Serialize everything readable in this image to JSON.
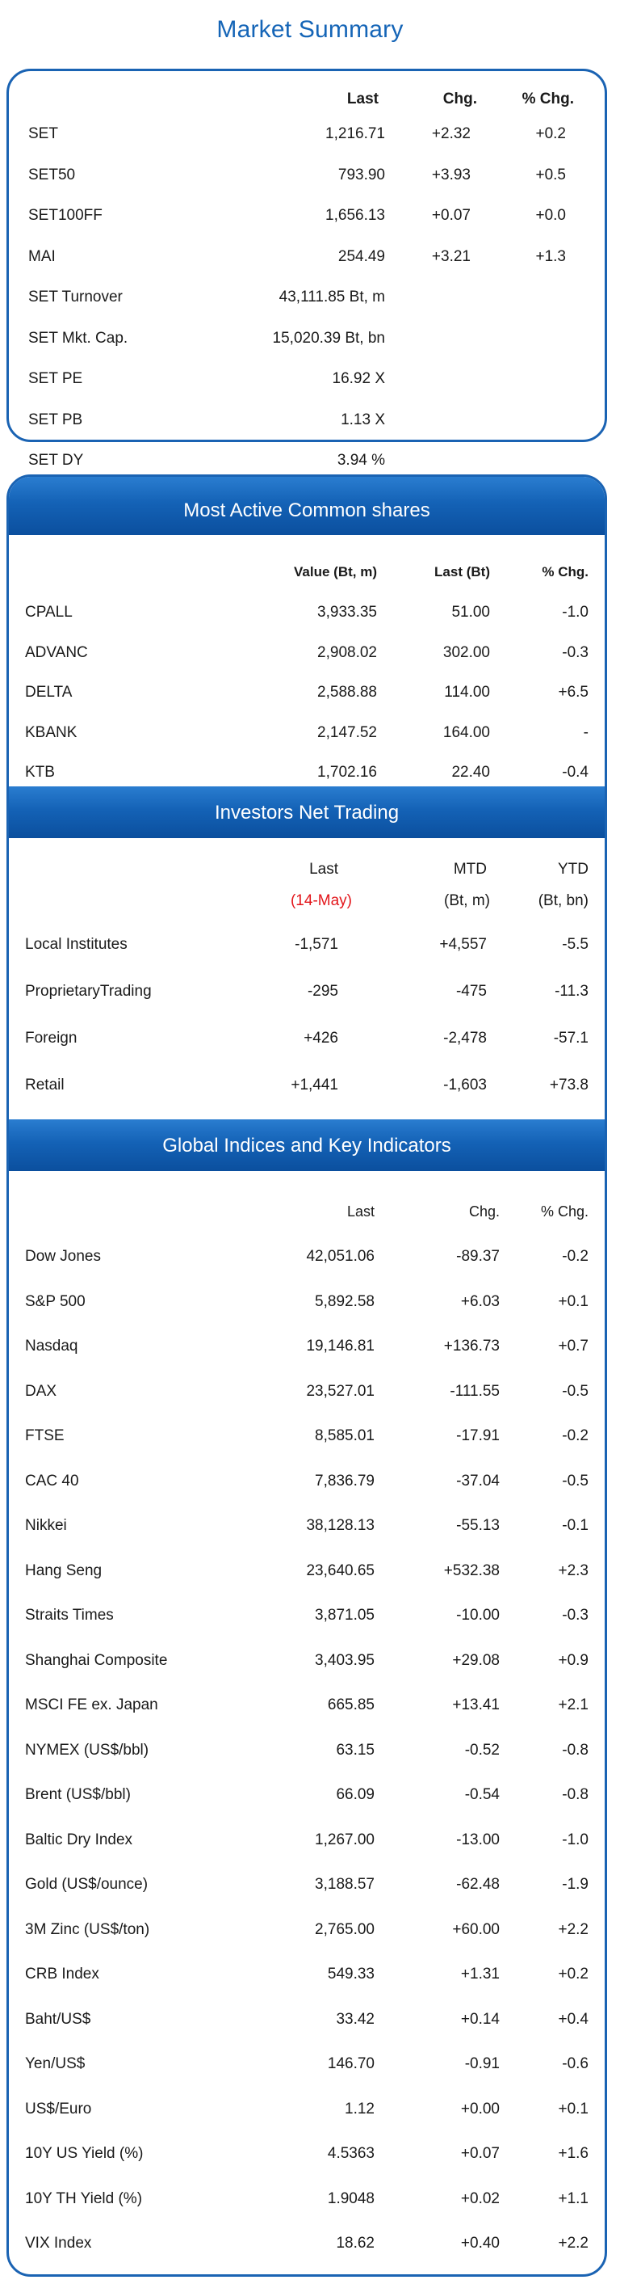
{
  "page_title": "Market Summary",
  "market_summary": {
    "headers": {
      "last": "Last",
      "chg": "Chg.",
      "pct": "% Chg."
    },
    "rows": [
      {
        "name": "SET",
        "last": "1,216.71",
        "chg": "+2.32",
        "pct": "+0.2"
      },
      {
        "name": "SET50",
        "last": "793.90",
        "chg": "+3.93",
        "pct": "+0.5"
      },
      {
        "name": "SET100FF",
        "last": "1,656.13",
        "chg": "+0.07",
        "pct": "+0.0"
      },
      {
        "name": "MAI",
        "last": "254.49",
        "chg": "+3.21",
        "pct": "+1.3"
      },
      {
        "name": "SET  Turnover",
        "last": "43,111.85 Bt, m",
        "chg": "",
        "pct": ""
      },
      {
        "name": "SET  Mkt. Cap.",
        "last": "15,020.39 Bt, bn",
        "chg": "",
        "pct": ""
      },
      {
        "name": "SET  PE",
        "last": "16.92 X",
        "chg": "",
        "pct": ""
      },
      {
        "name": "SET  PB",
        "last": "1.13 X",
        "chg": "",
        "pct": ""
      },
      {
        "name": "SET  DY",
        "last": "3.94 %",
        "chg": "",
        "pct": ""
      }
    ]
  },
  "most_active": {
    "title": "Most Active Common shares",
    "headers": {
      "value": "Value (Bt, m)",
      "last": "Last (Bt)",
      "pct": "% Chg."
    },
    "rows": [
      {
        "name": "CPALL",
        "value": "3,933.35",
        "last": "51.00",
        "pct": "-1.0"
      },
      {
        "name": "ADVANC",
        "value": "2,908.02",
        "last": "302.00",
        "pct": "-0.3"
      },
      {
        "name": "DELTA",
        "value": "2,588.88",
        "last": "114.00",
        "pct": "+6.5"
      },
      {
        "name": "KBANK",
        "value": "2,147.52",
        "last": "164.00",
        "pct": "-"
      },
      {
        "name": "KTB",
        "value": "1,702.16",
        "last": "22.40",
        "pct": "-0.4"
      }
    ]
  },
  "investors": {
    "title": "Investors Net Trading",
    "headers": {
      "last": "Last",
      "mtd": "MTD",
      "ytd": "YTD"
    },
    "subheaders": {
      "last": "(14-May)",
      "mtd": "(Bt, m)",
      "ytd": "(Bt, bn)"
    },
    "rows": [
      {
        "name": "Local Institutes",
        "last": "-1,571",
        "mtd": "+4,557",
        "ytd": "-5.5"
      },
      {
        "name": "ProprietaryTrading",
        "last": "-295",
        "mtd": "-475",
        "ytd": "-11.3"
      },
      {
        "name": "Foreign",
        "last": "+426",
        "mtd": "-2,478",
        "ytd": "-57.1"
      },
      {
        "name": "Retail",
        "last": "+1,441",
        "mtd": "-1,603",
        "ytd": "+73.8"
      }
    ]
  },
  "global": {
    "title": "Global Indices and Key Indicators",
    "headers": {
      "last": "Last",
      "chg": "Chg.",
      "pct": "% Chg."
    },
    "rows": [
      {
        "name": "Dow Jones",
        "last": "42,051.06",
        "chg": "-89.37",
        "pct": "-0.2"
      },
      {
        "name": "S&P 500",
        "last": "5,892.58",
        "chg": "+6.03",
        "pct": "+0.1"
      },
      {
        "name": "Nasdaq",
        "last": "19,146.81",
        "chg": "+136.73",
        "pct": "+0.7"
      },
      {
        "name": "DAX",
        "last": "23,527.01",
        "chg": "-111.55",
        "pct": "-0.5"
      },
      {
        "name": "FTSE",
        "last": "8,585.01",
        "chg": "-17.91",
        "pct": "-0.2"
      },
      {
        "name": "CAC 40",
        "last": "7,836.79",
        "chg": "-37.04",
        "pct": "-0.5"
      },
      {
        "name": "Nikkei",
        "last": "38,128.13",
        "chg": "-55.13",
        "pct": "-0.1"
      },
      {
        "name": "Hang Seng",
        "last": "23,640.65",
        "chg": "+532.38",
        "pct": "+2.3"
      },
      {
        "name": "Straits Times",
        "last": "3,871.05",
        "chg": "-10.00",
        "pct": "-0.3"
      },
      {
        "name": "Shanghai Composite",
        "last": "3,403.95",
        "chg": "+29.08",
        "pct": "+0.9"
      },
      {
        "name": "MSCI FE ex. Japan",
        "last": "665.85",
        "chg": "+13.41",
        "pct": "+2.1"
      },
      {
        "name": "NYMEX (US$/bbl)",
        "last": "63.15",
        "chg": "-0.52",
        "pct": "-0.8"
      },
      {
        "name": "Brent (US$/bbl)",
        "last": "66.09",
        "chg": "-0.54",
        "pct": "-0.8"
      },
      {
        "name": "Baltic Dry Index",
        "last": "1,267.00",
        "chg": "-13.00",
        "pct": "-1.0"
      },
      {
        "name": "Gold (US$/ounce)",
        "last": "3,188.57",
        "chg": "-62.48",
        "pct": "-1.9"
      },
      {
        "name": "3M Zinc (US$/ton)",
        "last": "2,765.00",
        "chg": "+60.00",
        "pct": "+2.2"
      },
      {
        "name": "CRB Index",
        "last": "549.33",
        "chg": "+1.31",
        "pct": "+0.2"
      },
      {
        "name": "Baht/US$",
        "last": "33.42",
        "chg": "+0.14",
        "pct": "+0.4"
      },
      {
        "name": "Yen/US$",
        "last": "146.70",
        "chg": "-0.91",
        "pct": "-0.6"
      },
      {
        "name": "US$/Euro",
        "last": "1.12",
        "chg": "+0.00",
        "pct": "+0.1"
      },
      {
        "name": "10Y US Yield (%)",
        "last": "4.5363",
        "chg": "+0.07",
        "pct": "+1.6"
      },
      {
        "name": "10Y TH Yield (%)",
        "last": "1.9048",
        "chg": "+0.02",
        "pct": "+1.1"
      },
      {
        "name": "VIX Index",
        "last": "18.62",
        "chg": "+0.40",
        "pct": "+2.2"
      }
    ]
  },
  "colors": {
    "accent": "#1a63b3",
    "band": "#1462b6",
    "highlight": "#e3161b"
  }
}
